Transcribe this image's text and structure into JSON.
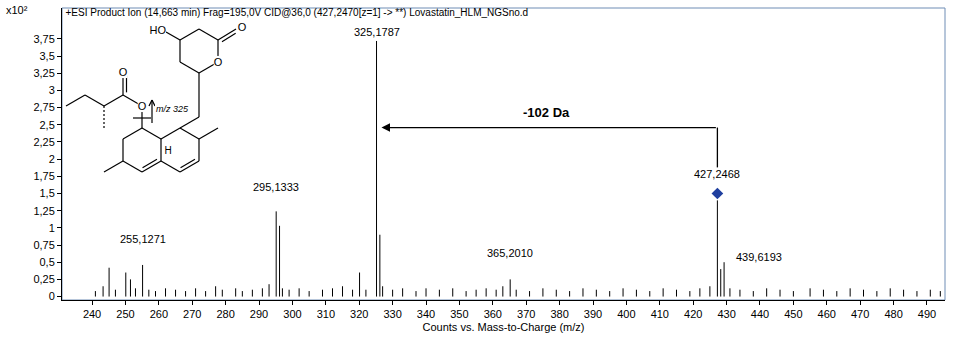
{
  "chart_data": {
    "type": "stem",
    "title": "+ESI Product Ion (14,663 min) Frag=195,0V CID@36,0 (427,2470[z=1] -> **) Lovastatin_HLM_NGSno.d",
    "x_label": "Counts vs. Mass-to-Charge (m/z)",
    "y_label": "x10²",
    "color": "#000000",
    "x": [
      241.0,
      243.3,
      245.1,
      247.0,
      250.1,
      251.5,
      253.0,
      255.1271,
      257.0,
      259.0,
      262.0,
      265.0,
      268.0,
      271.0,
      274.0,
      277.0,
      279.0,
      283.0,
      285.0,
      288.0,
      291.0,
      293.0,
      295.1333,
      296.14,
      297.0,
      299.0,
      302.0,
      305.0,
      309.0,
      312.0,
      315.0,
      318.0,
      320.1,
      322.0,
      325.1787,
      326.18,
      327.0,
      330.0,
      333.0,
      337.0,
      340.0,
      344.0,
      348.0,
      352.0,
      355.0,
      358.0,
      361.0,
      363.0,
      365.201,
      367.0,
      371.0,
      375.0,
      379.0,
      383.0,
      387.0,
      391.0,
      395.0,
      399.0,
      403.0,
      407.0,
      411.0,
      415.0,
      419.0,
      422.0,
      425.0,
      427.2468,
      428.25,
      429.25,
      431.0,
      434.0,
      438.0,
      442.0,
      446.0,
      450.0,
      455.0,
      459.0,
      463.0,
      467.0,
      471.0,
      475.0,
      479.0,
      483.0,
      487.0,
      491.0,
      494.0
    ],
    "values": [
      0.08,
      0.15,
      0.42,
      0.1,
      0.35,
      0.25,
      0.12,
      0.46,
      0.1,
      0.08,
      0.12,
      0.1,
      0.08,
      0.12,
      0.08,
      0.15,
      0.1,
      0.12,
      0.08,
      0.1,
      0.12,
      0.18,
      1.24,
      1.03,
      0.12,
      0.1,
      0.12,
      0.08,
      0.1,
      0.12,
      0.15,
      0.1,
      0.35,
      0.1,
      3.72,
      0.9,
      0.15,
      0.1,
      0.12,
      0.08,
      0.12,
      0.1,
      0.12,
      0.08,
      0.1,
      0.12,
      0.1,
      0.15,
      0.25,
      0.1,
      0.08,
      0.12,
      0.1,
      0.08,
      0.12,
      0.1,
      0.08,
      0.12,
      0.1,
      0.08,
      0.12,
      0.1,
      0.08,
      0.12,
      0.15,
      1.4,
      0.4,
      0.5,
      0.12,
      0.1,
      0.08,
      0.12,
      0.1,
      0.08,
      0.12,
      0.1,
      0.08,
      0.12,
      0.1,
      0.08,
      0.12,
      0.1,
      0.08,
      0.1,
      0.08
    ],
    "precursor": {
      "x": 427.2468,
      "value": 1.5,
      "marker": "diamond",
      "color": "#1f3f9f"
    },
    "peak_labels": [
      {
        "x": 325.1787,
        "y": 3.72,
        "label": "325,1787"
      },
      {
        "x": 295.1333,
        "y": 1.47,
        "label": "295,1333"
      },
      {
        "x": 255.1271,
        "y": 0.71,
        "label": "255,1271"
      },
      {
        "x": 365.201,
        "y": 0.5,
        "label": "365,2010"
      },
      {
        "x": 427.2468,
        "y": 1.66,
        "label": "427,2468"
      },
      {
        "x": 439.6193,
        "y": 0.44,
        "label": "439,6193"
      }
    ],
    "arrow": {
      "text": "-102 Da",
      "from": 427.2468,
      "to": 325.1787,
      "y": 2.46
    },
    "xlim": [
      231,
      495.4
    ],
    "ylim": [
      -0.05,
      4.2
    ],
    "xticks": [
      240,
      250,
      260,
      270,
      280,
      290,
      300,
      310,
      320,
      330,
      340,
      350,
      360,
      370,
      380,
      390,
      400,
      410,
      420,
      430,
      440,
      450,
      460,
      470,
      480,
      490
    ],
    "yticks": [
      0,
      {
        "value": 0.25,
        "label": "0,25"
      },
      {
        "value": 0.5,
        "label": "0,5"
      },
      {
        "value": 0.75,
        "label": "0,75"
      },
      1,
      {
        "value": 1.25,
        "label": "1,25"
      },
      {
        "value": 1.5,
        "label": "1,5"
      },
      {
        "value": 1.75,
        "label": "1,75"
      },
      2,
      {
        "value": 2.25,
        "label": "2,25"
      },
      {
        "value": 2.5,
        "label": "2,5"
      },
      {
        "value": 2.75,
        "label": "2,75"
      },
      3,
      {
        "value": 3.25,
        "label": "3,25"
      },
      {
        "value": 3.5,
        "label": "3,5"
      },
      {
        "value": 3.75,
        "label": "3,75"
      }
    ],
    "grid": false
  },
  "structure": {
    "hydroxyl": "HO",
    "lactone_carbonyl": "O",
    "lactone_oxygen": "O",
    "ester_oxygen": "O",
    "ester_carbonyl": "O",
    "hydrogen": "H",
    "fragment": "m/z 325"
  }
}
